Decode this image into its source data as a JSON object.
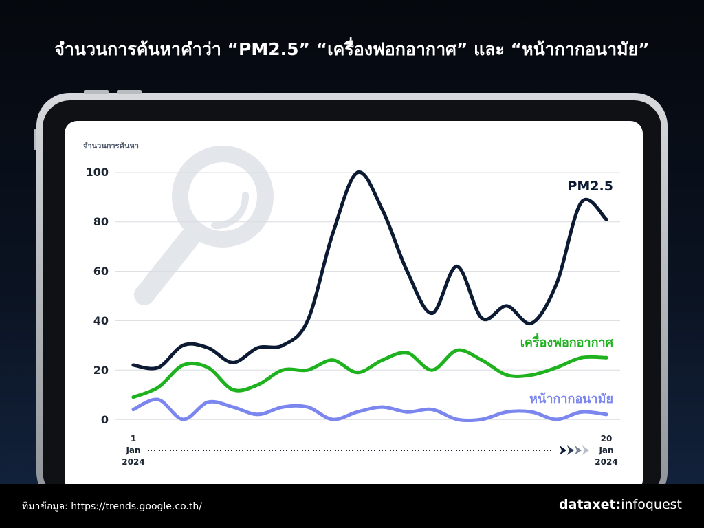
{
  "headline": "จำนวนการค้นหาคำว่า “PM2.5” “เครื่องฟอกอากาศ” และ “หน้ากากอนามัย”",
  "source": "ที่มาข้อมูล: https://trends.google.co.th/",
  "brand": {
    "part1": "dataxet",
    "separator": ":",
    "part2": "infoquest"
  },
  "colors": {
    "pm25": "#0c1a33",
    "purifier": "#1fb21f",
    "mask": "#7b86ee",
    "grid": "#d9dce1",
    "axis_text": "#1c2633",
    "watermark": "#e3e6ea"
  },
  "decor": {
    "watermark_icon": "magnifier-icon",
    "arrow_icon": "fast-forward-icon"
  },
  "chart_data": {
    "type": "line",
    "ylabel": "จำนวนการค้นหา",
    "ylim": [
      0,
      100
    ],
    "yticks": [
      "100",
      "80",
      "60",
      "40",
      "20",
      "0"
    ],
    "ytick_values": [
      100,
      80,
      60,
      40,
      20,
      0
    ],
    "x": [
      "1 Jan 2024",
      "2 Jan 2024",
      "3 Jan 2024",
      "4 Jan 2024",
      "5 Jan 2024",
      "6 Jan 2024",
      "7 Jan 2024",
      "8 Jan 2024",
      "9 Jan 2024",
      "10 Jan 2024",
      "11 Jan 2024",
      "12 Jan 2024",
      "13 Jan 2024",
      "14 Jan 2024",
      "15 Jan 2024",
      "16 Jan 2024",
      "17 Jan 2024",
      "18 Jan 2024",
      "19 Jan 2024",
      "20 Jan 2024"
    ],
    "x_start": {
      "line1": "1",
      "line2": "Jan",
      "line3": "2024"
    },
    "x_end": {
      "line1": "20",
      "line2": "Jan",
      "line3": "2024"
    },
    "grid": true,
    "series": [
      {
        "name": "PM2.5",
        "key": "pm25",
        "values": [
          22,
          21,
          30,
          29,
          23,
          29,
          30,
          40,
          75,
          100,
          85,
          60,
          43,
          62,
          41,
          46,
          39,
          55,
          88,
          81
        ]
      },
      {
        "name": "เครื่องฟอกอากาศ",
        "key": "purifier",
        "values": [
          9,
          13,
          22,
          21,
          12,
          14,
          20,
          20,
          24,
          19,
          24,
          27,
          20,
          28,
          24,
          18,
          18,
          21,
          25,
          25
        ]
      },
      {
        "name": "หน้ากากอนามัย",
        "key": "mask",
        "values": [
          4,
          8,
          0,
          7,
          5,
          2,
          5,
          5,
          0,
          3,
          5,
          3,
          4,
          0,
          0,
          3,
          3,
          0,
          3,
          2
        ]
      }
    ]
  }
}
